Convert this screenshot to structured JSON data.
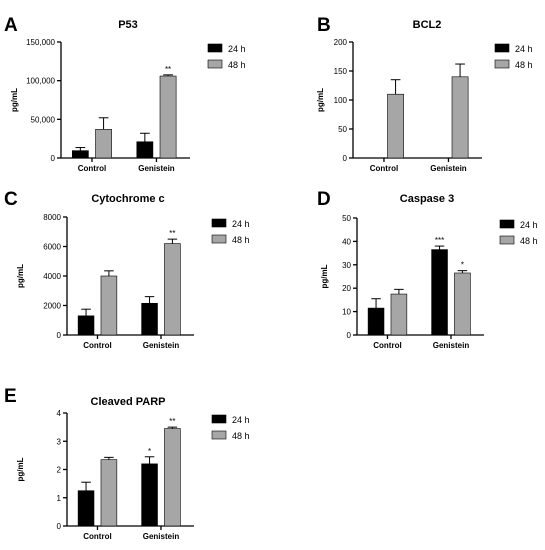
{
  "chart_data": [
    {
      "panel": "A",
      "type": "bar",
      "title": "P53",
      "ylabel": "pg/mL",
      "categories": [
        "Control",
        "Genistein"
      ],
      "ylim": [
        0,
        150000
      ],
      "yticks": [
        0,
        50000,
        100000,
        150000
      ],
      "ytick_labels": [
        "0",
        "50,000",
        "100,000",
        "150,000"
      ],
      "series": [
        {
          "name": "24 h",
          "color": "#000000",
          "values": [
            9500,
            21000
          ],
          "errors": [
            4000,
            11000
          ],
          "annotations": [
            "",
            ""
          ]
        },
        {
          "name": "48 h",
          "color": "#a6a6a6",
          "values": [
            37000,
            106000
          ],
          "errors": [
            15000,
            1500
          ],
          "annotations": [
            "",
            "**"
          ]
        }
      ],
      "legend_position": "top-right"
    },
    {
      "panel": "B",
      "type": "bar",
      "title": "BCL2",
      "ylabel": "pg/mL",
      "categories": [
        "Control",
        "Genistein"
      ],
      "ylim": [
        0,
        200
      ],
      "yticks": [
        0,
        50,
        100,
        150,
        200
      ],
      "ytick_labels": [
        "0",
        "50",
        "100",
        "150",
        "200"
      ],
      "series": [
        {
          "name": "24 h",
          "color": "#000000",
          "values": [
            0,
            0
          ],
          "errors": [
            0,
            0
          ],
          "annotations": [
            "",
            ""
          ]
        },
        {
          "name": "48 h",
          "color": "#a6a6a6",
          "values": [
            110,
            140
          ],
          "errors": [
            25,
            22
          ],
          "annotations": [
            "",
            ""
          ]
        }
      ],
      "legend_position": "top-right"
    },
    {
      "panel": "C",
      "type": "bar",
      "title": "Cytochrome c",
      "ylabel": "pg/mL",
      "categories": [
        "Control",
        "Genistein"
      ],
      "ylim": [
        0,
        8000
      ],
      "yticks": [
        0,
        2000,
        4000,
        6000,
        8000
      ],
      "ytick_labels": [
        "0",
        "2000",
        "4000",
        "6000",
        "8000"
      ],
      "series": [
        {
          "name": "24 h",
          "color": "#000000",
          "values": [
            1300,
            2150
          ],
          "errors": [
            450,
            450
          ],
          "annotations": [
            "",
            ""
          ]
        },
        {
          "name": "48 h",
          "color": "#a6a6a6",
          "values": [
            4000,
            6200
          ],
          "errors": [
            350,
            300
          ],
          "annotations": [
            "",
            "**"
          ]
        }
      ],
      "legend_position": "top-right"
    },
    {
      "panel": "D",
      "type": "bar",
      "title": "Caspase 3",
      "ylabel": "pg/mL",
      "categories": [
        "Control",
        "Genistein"
      ],
      "ylim": [
        0,
        50
      ],
      "yticks": [
        0,
        10,
        20,
        30,
        40,
        50
      ],
      "ytick_labels": [
        "0",
        "10",
        "20",
        "30",
        "40",
        "50"
      ],
      "series": [
        {
          "name": "24 h",
          "color": "#000000",
          "values": [
            11.5,
            36.5
          ],
          "errors": [
            4,
            1.5
          ],
          "annotations": [
            "",
            "***"
          ]
        },
        {
          "name": "48 h",
          "color": "#a6a6a6",
          "values": [
            17.5,
            26.5
          ],
          "errors": [
            2,
            1
          ],
          "annotations": [
            "",
            "*"
          ]
        }
      ],
      "legend_position": "top-right"
    },
    {
      "panel": "E",
      "type": "bar",
      "title": "Cleaved PARP",
      "ylabel": "pg/mL",
      "categories": [
        "Control",
        "Genistein"
      ],
      "ylim": [
        0,
        4
      ],
      "yticks": [
        0,
        1,
        2,
        3,
        4
      ],
      "ytick_labels": [
        "0",
        "1",
        "2",
        "3",
        "4"
      ],
      "series": [
        {
          "name": "24 h",
          "color": "#000000",
          "values": [
            1.25,
            2.2
          ],
          "errors": [
            0.3,
            0.25
          ],
          "annotations": [
            "",
            "*"
          ]
        },
        {
          "name": "48 h",
          "color": "#a6a6a6",
          "values": [
            2.35,
            3.45
          ],
          "errors": [
            0.08,
            0.05
          ],
          "annotations": [
            "",
            "**"
          ]
        }
      ],
      "legend_position": "top-right"
    }
  ]
}
